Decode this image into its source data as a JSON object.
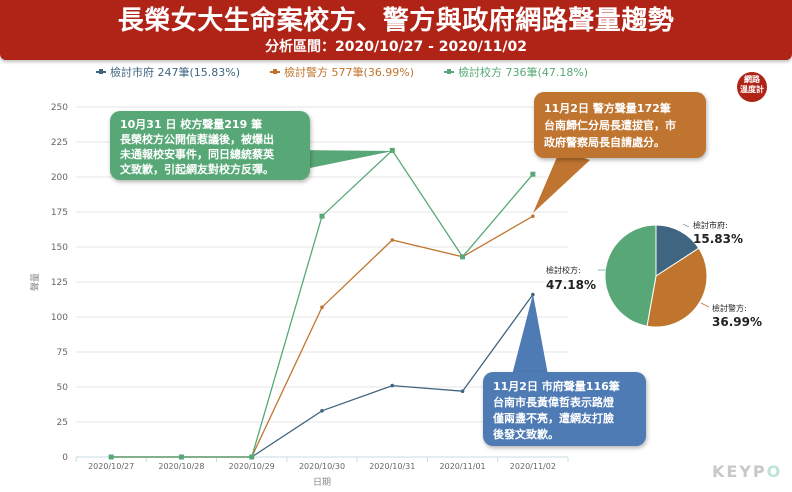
{
  "header": {
    "title": "長榮女大生命案校方、警方與政府網路聲量趨勢",
    "subtitle": "分析區間：2020/10/27 - 2020/11/02"
  },
  "legend": [
    {
      "label": "檢討市府 247筆(15.83%)",
      "color": "#3f6580"
    },
    {
      "label": "檢討警方 577筆(36.99%)",
      "color": "#c0752f"
    },
    {
      "label": "檢討校方 736筆(47.18%)",
      "color": "#58a877"
    }
  ],
  "badge": {
    "line1": "網路",
    "line2": "溫度計"
  },
  "axes": {
    "ylabel": "聲量",
    "xlabel": "日期"
  },
  "callouts": {
    "school": [
      "10月31 日 校方聲量219 筆",
      "長榮校方公開信惹議後，被爆出",
      "未通報校安事件，同日總統蔡英",
      "文致歉，引起網友對校方反彈。"
    ],
    "police": [
      "11月2日 警方聲量172筆",
      "台南歸仁分局長遭拔官，市",
      "政府警察局長自請處分。"
    ],
    "city": [
      "11月2日 市府聲量116筆",
      "台南市長黃偉哲表示路燈",
      "僅兩盞不亮，遭網友打臉",
      "後發文致歉。"
    ]
  },
  "pie_labels": {
    "city": {
      "name": "檢討市府:",
      "pct": "15.83%"
    },
    "police": {
      "name": "檢討警方:",
      "pct": "36.99%"
    },
    "school": {
      "name": "檢討校方:",
      "pct": "47.18%"
    }
  },
  "logo": {
    "main": "KEYP",
    "tail": "O"
  },
  "chart_data": [
    {
      "type": "line",
      "title": "長榮女大生命案校方、警方與政府網路聲量趨勢",
      "subtitle": "分析區間：2020/10/27 - 2020/11/02",
      "xlabel": "日期",
      "ylabel": "聲量",
      "categories": [
        "2020/10/27",
        "2020/10/28",
        "2020/10/29",
        "2020/10/30",
        "2020/10/31",
        "2020/11/01",
        "2020/11/02"
      ],
      "yticks": [
        0,
        25,
        50,
        75,
        100,
        125,
        150,
        175,
        200,
        225,
        250
      ],
      "ylim": [
        0,
        250
      ],
      "grid": true,
      "legend_position": "top",
      "series": [
        {
          "name": "檢討市府",
          "total": 247,
          "share": "15.83%",
          "color": "#3f6580",
          "values": [
            0,
            0,
            0,
            33,
            51,
            47,
            116
          ]
        },
        {
          "name": "檢討警方",
          "total": 577,
          "share": "36.99%",
          "color": "#c0752f",
          "values": [
            0,
            0,
            0,
            107,
            155,
            143,
            172
          ]
        },
        {
          "name": "檢討校方",
          "total": 736,
          "share": "47.18%",
          "color": "#58a877",
          "values": [
            0,
            0,
            0,
            172,
            219,
            143,
            202
          ]
        }
      ],
      "annotations": [
        {
          "x": "2020/10/31",
          "series": "檢討校方",
          "text": "10月31 日 校方聲量219 筆 長榮校方公開信惹議後，被爆出未通報校安事件，同日總統蔡英文致歉，引起網友對校方反彈。"
        },
        {
          "x": "2020/11/02",
          "series": "檢討警方",
          "text": "11月2日 警方聲量172筆 台南歸仁分局長遭拔官，市政府警察局長自請處分。"
        },
        {
          "x": "2020/11/02",
          "series": "檢討市府",
          "text": "11月2日 市府聲量116筆 台南市長黃偉哲表示路燈僅兩盞不亮，遭網友打臉後發文致歉。"
        }
      ]
    },
    {
      "type": "pie",
      "categories": [
        "檢討市府",
        "檢討警方",
        "檢討校方"
      ],
      "values": [
        15.83,
        36.99,
        47.18
      ],
      "colors": [
        "#3f6580",
        "#c0752f",
        "#58a877"
      ]
    }
  ]
}
